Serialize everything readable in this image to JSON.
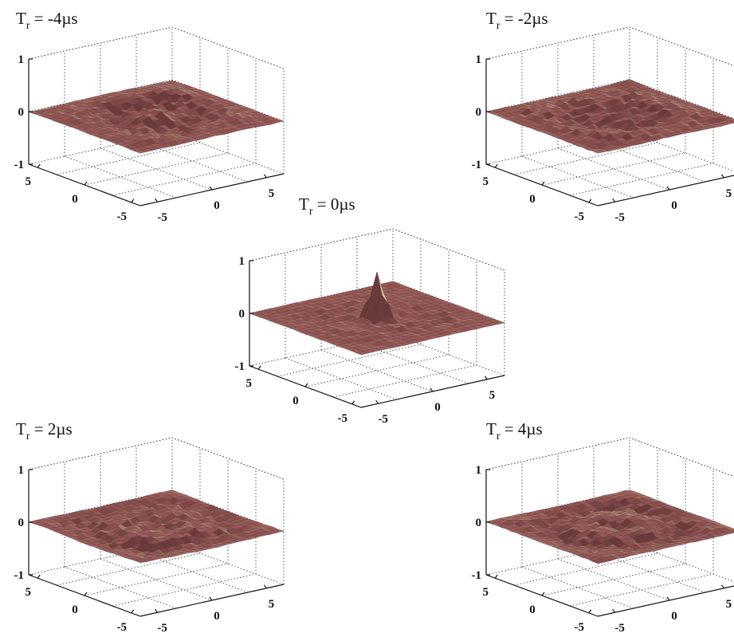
{
  "chart_data": [
    {
      "type": "surface",
      "title": {
        "base": "T",
        "sub": "r",
        "rest": " = -4µs"
      },
      "zlim": [
        -1,
        1
      ],
      "xlim": [
        -6,
        6
      ],
      "ylim": [
        -6,
        6
      ],
      "z_ticks": [
        "1",
        "0",
        "-1"
      ],
      "x_ticks": [
        "-5",
        "0",
        "5"
      ],
      "y_ticks": [
        "5",
        "0",
        "-5"
      ],
      "grid": true,
      "peak": 0.0,
      "surface": "noise"
    },
    {
      "type": "surface",
      "title": {
        "base": "T",
        "sub": "r",
        "rest": " = -2µs"
      },
      "zlim": [
        -1,
        1
      ],
      "xlim": [
        -6,
        6
      ],
      "ylim": [
        -6,
        6
      ],
      "z_ticks": [
        "1",
        "0",
        "-1"
      ],
      "x_ticks": [
        "-5",
        "0",
        "5"
      ],
      "y_ticks": [
        "5",
        "0",
        "-5"
      ],
      "grid": true,
      "peak": 0.0,
      "surface": "noise"
    },
    {
      "type": "surface",
      "title": {
        "base": "T",
        "sub": "r",
        "rest": " = 0µs"
      },
      "zlim": [
        -1,
        1
      ],
      "xlim": [
        -6,
        6
      ],
      "ylim": [
        -6,
        6
      ],
      "z_ticks": [
        "1",
        "0",
        "-1"
      ],
      "x_ticks": [
        "-5",
        "0",
        "5"
      ],
      "y_ticks": [
        "5",
        "0",
        "-5"
      ],
      "grid": true,
      "peak": 0.85,
      "surface": "central-peak"
    },
    {
      "type": "surface",
      "title": {
        "base": "T",
        "sub": "r",
        "rest": " = 2µs"
      },
      "zlim": [
        -1,
        1
      ],
      "xlim": [
        -6,
        6
      ],
      "ylim": [
        -6,
        6
      ],
      "z_ticks": [
        "1",
        "0",
        "-1"
      ],
      "x_ticks": [
        "-5",
        "0",
        "5"
      ],
      "y_ticks": [
        "5",
        "0",
        "-5"
      ],
      "grid": true,
      "peak": 0.0,
      "surface": "noise"
    },
    {
      "type": "surface",
      "title": {
        "base": "T",
        "sub": "r",
        "rest": " = 4µs"
      },
      "zlim": [
        -1,
        1
      ],
      "xlim": [
        -6,
        6
      ],
      "ylim": [
        -6,
        6
      ],
      "z_ticks": [
        "1",
        "0",
        "-1"
      ],
      "x_ticks": [
        "-5",
        "0",
        "5"
      ],
      "y_ticks": [
        "5",
        "0",
        "-5"
      ],
      "grid": true,
      "peak": 0.0,
      "surface": "noise"
    }
  ],
  "colors": {
    "surface_dark": "#6b3a3a",
    "surface_mid": "#a0605e",
    "surface_light": "#d8c79a",
    "axis": "#111111",
    "grid": "#444444"
  }
}
